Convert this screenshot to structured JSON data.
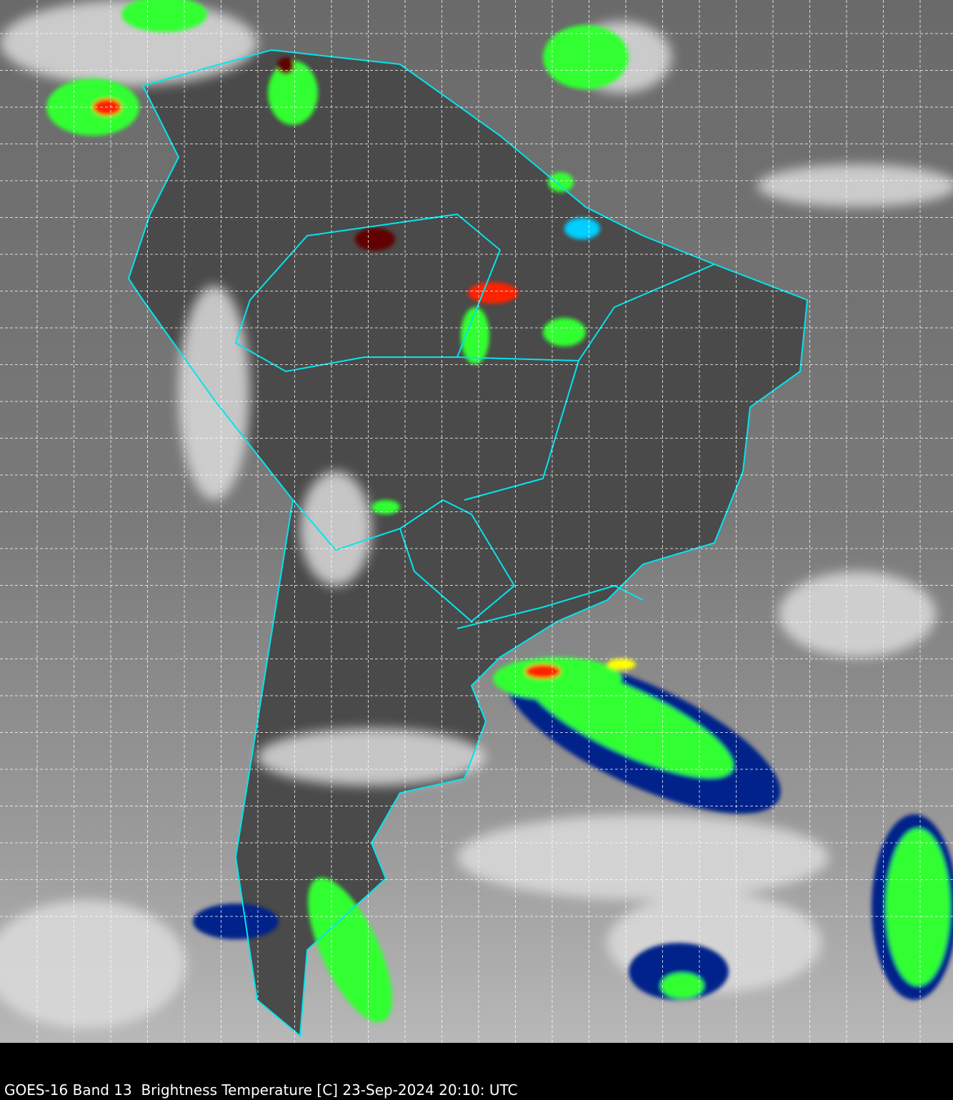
{
  "figure": {
    "caption": "GOES-16 Band 13  Brightness Temperature [C] 23-Sep-2024 20:10: UTC",
    "satellite": "GOES-16",
    "band": "Band 13",
    "variable": "Brightness Temperature [C]",
    "datetime": "23-Sep-2024 20:10: UTC"
  },
  "colors": {
    "background": "#000000",
    "borders": "#00e5ee",
    "grid": "#ffffff",
    "cloud_cold_1": "#00cfff",
    "cloud_cold_2": "#00208a",
    "cloud_cold_3": "#33ff33",
    "cloud_cold_4": "#ffff00",
    "cloud_cold_5": "#ff2000",
    "cloud_cold_6": "#600000"
  }
}
